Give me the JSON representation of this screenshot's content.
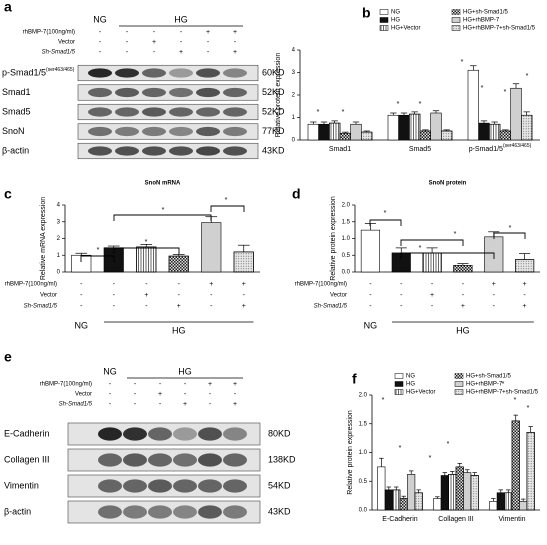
{
  "blots": [
    {
      "letter": "a",
      "group_labels": [
        "NG",
        "HG"
      ],
      "rows": [
        {
          "label": "rhBMP-7(100ng/ml)",
          "marks": [
            "-",
            "-",
            "-",
            "-",
            "+",
            "+"
          ]
        },
        {
          "label": "Vector",
          "marks": [
            "-",
            "-",
            "+",
            "-",
            "-",
            "-"
          ]
        },
        {
          "label": "Sh-Smad1/5",
          "marks": [
            "-",
            "-",
            "-",
            "+",
            "-",
            "+"
          ]
        }
      ],
      "bands": [
        {
          "label": "p-Smad1/5",
          "superscript": "(ser463/465)",
          "size": "60KD"
        },
        {
          "label": "Smad1",
          "size": "52KD"
        },
        {
          "label": "Smad5",
          "size": "52KD"
        },
        {
          "label": "SnoN",
          "size": "77KD"
        },
        {
          "label": "β-actin",
          "size": "43KD"
        }
      ]
    },
    {
      "letter": "e",
      "group_labels": [
        "NG",
        "HG"
      ],
      "rows": [
        {
          "label": "rhBMP-7(100ng/ml)",
          "marks": [
            "-",
            "-",
            "-",
            "-",
            "+",
            "+"
          ]
        },
        {
          "label": "Vector",
          "marks": [
            "-",
            "-",
            "+",
            "-",
            "-",
            "-"
          ]
        },
        {
          "label": "Sh-Smad1/5",
          "marks": [
            "-",
            "-",
            "-",
            "+",
            "-",
            "+"
          ]
        }
      ],
      "bands": [
        {
          "label": "E-Cadherin",
          "size": "80KD"
        },
        {
          "label": "Collagen III",
          "size": "138KD"
        },
        {
          "label": "Vimentin",
          "size": "54KD"
        },
        {
          "label": "β-actin",
          "size": "43KD"
        }
      ]
    }
  ],
  "chart_data": [
    {
      "type": "bar",
      "letter": "b",
      "y_label": "Relative protein expression",
      "categories": [
        "Smad1",
        "Smad5",
        "p-Smad1/5"
      ],
      "category_superscripts": [
        null,
        null,
        "(ser463/465)"
      ],
      "ylim": [
        0,
        4
      ],
      "yticks": [
        0,
        1,
        2,
        3,
        4
      ],
      "series": [
        {
          "name": "NG",
          "color": "#ffffff",
          "pattern": "none",
          "values": [
            0.7,
            1.1,
            3.1
          ],
          "errors": [
            0.1,
            0.1,
            0.2
          ]
        },
        {
          "name": "HG",
          "color": "#111111",
          "pattern": "none",
          "values": [
            0.7,
            1.1,
            0.75
          ],
          "errors": [
            0.1,
            0.1,
            0.1
          ]
        },
        {
          "name": "HG+Vector",
          "color": "#ffffff",
          "pattern": "stripes",
          "values": [
            0.75,
            1.15,
            0.7
          ],
          "errors": [
            0.1,
            0.1,
            0.1
          ]
        },
        {
          "name": "HG+sh-Smad1/5",
          "color": "#555555",
          "pattern": "check",
          "values": [
            0.3,
            0.4,
            0.4
          ],
          "errors": [
            0.05,
            0.05,
            0.05
          ]
        },
        {
          "name": "HG+rhBMP-7",
          "color": "#d0d0d0",
          "pattern": "none",
          "values": [
            0.7,
            1.2,
            2.3
          ],
          "errors": [
            0.1,
            0.1,
            0.2
          ]
        },
        {
          "name": "HG+rhBMP-7+sh-Smad1/5",
          "color": "#e6e6e6",
          "pattern": "dots",
          "values": [
            0.35,
            0.4,
            1.1
          ],
          "errors": [
            0.05,
            0.05,
            0.15
          ]
        }
      ],
      "significance": [
        "*",
        "*",
        "*",
        "*",
        "*",
        "*",
        "*",
        "*"
      ]
    },
    {
      "type": "bar",
      "letter": "c",
      "title": "SnoN mRNA",
      "y_label": "Relative mRNA expression",
      "categories": [
        null,
        null,
        null,
        null,
        null,
        null
      ],
      "values": [
        1.0,
        1.45,
        1.5,
        0.95,
        2.95,
        1.2
      ],
      "errors": [
        0.12,
        0.1,
        0.15,
        0.1,
        0.35,
        0.4
      ],
      "colors": [
        "#ffffff",
        "#111111",
        "#ffffff",
        "#555555",
        "#d0d0d0",
        "#e6e6e6"
      ],
      "patterns": [
        "none",
        "none",
        "stripes",
        "check",
        "none",
        "dots"
      ],
      "ylim": [
        0,
        4
      ],
      "yticks": [
        0,
        1,
        2,
        3,
        4
      ],
      "group_labels": [
        "NG",
        "HG"
      ],
      "treatments": [
        {
          "label": "rhBMP-7(100ng/ml)",
          "marks": [
            "-",
            "-",
            "-",
            "-",
            "+",
            "+"
          ]
        },
        {
          "label": "Vector",
          "marks": [
            "-",
            "-",
            "+",
            "-",
            "-",
            "-"
          ]
        },
        {
          "label": "Sh-Smad1/5",
          "marks": [
            "-",
            "-",
            "-",
            "+",
            "-",
            "+"
          ]
        }
      ],
      "significance": [
        "*",
        "*",
        "*",
        "*"
      ]
    },
    {
      "type": "bar",
      "letter": "d",
      "title": "SnoN protein",
      "y_label": "Relative protein expression",
      "categories": [
        null,
        null,
        null,
        null,
        null,
        null
      ],
      "values": [
        1.25,
        0.57,
        0.57,
        0.2,
        1.05,
        0.37
      ],
      "errors": [
        0.2,
        0.15,
        0.15,
        0.05,
        0.15,
        0.18
      ],
      "colors": [
        "#ffffff",
        "#111111",
        "#ffffff",
        "#555555",
        "#d0d0d0",
        "#e6e6e6"
      ],
      "patterns": [
        "none",
        "none",
        "stripes",
        "check",
        "none",
        "dots"
      ],
      "ylim": [
        0,
        2
      ],
      "yticks": [
        {
          "value": 0,
          "label": "0.0"
        },
        {
          "value": 0.5,
          "label": "0.5"
        },
        {
          "value": 1,
          "label": "1.0"
        },
        {
          "value": 1.5,
          "label": "1.5"
        },
        {
          "value": 2,
          "label": "2.0"
        }
      ],
      "group_labels": [
        "NG",
        "HG"
      ],
      "treatments": [
        {
          "label": "rhBMP-7(100ng/ml)",
          "marks": [
            "-",
            "-",
            "-",
            "-",
            "+",
            "+"
          ]
        },
        {
          "label": "Vector",
          "marks": [
            "-",
            "-",
            "+",
            "-",
            "-",
            "-"
          ]
        },
        {
          "label": "Sh-Smad1/5",
          "marks": [
            "-",
            "-",
            "-",
            "+",
            "-",
            "+"
          ]
        }
      ],
      "significance": [
        "*",
        "*",
        "*",
        "*"
      ]
    },
    {
      "type": "bar",
      "letter": "f",
      "y_label": "Relative protein expression",
      "categories": [
        "E-Cadherin",
        "Collagen III",
        "Vimentin"
      ],
      "category_superscripts": [
        null,
        null,
        null
      ],
      "ylim": [
        0,
        2
      ],
      "yticks": [
        {
          "value": 0,
          "label": "0.0"
        },
        {
          "value": 0.5,
          "label": "0.5"
        },
        {
          "value": 1,
          "label": "1.0"
        },
        {
          "value": 1.5,
          "label": "1.5"
        },
        {
          "value": 2,
          "label": "2.0"
        }
      ],
      "series": [
        {
          "name": "NG",
          "color": "#ffffff",
          "pattern": "none",
          "values": [
            0.75,
            0.2,
            0.15
          ],
          "errors": [
            0.15,
            0.03,
            0.05
          ]
        },
        {
          "name": "HG",
          "color": "#111111",
          "pattern": "none",
          "values": [
            0.35,
            0.6,
            0.3
          ],
          "errors": [
            0.05,
            0.05,
            0.05
          ]
        },
        {
          "name": "HG+Vector",
          "color": "#ffffff",
          "pattern": "stripes",
          "values": [
            0.35,
            0.62,
            0.3
          ],
          "errors": [
            0.05,
            0.05,
            0.05
          ]
        },
        {
          "name": "HG+sh-Smad1/5",
          "color": "#555555",
          "pattern": "check",
          "values": [
            0.2,
            0.75,
            1.55
          ],
          "errors": [
            0.04,
            0.06,
            0.1
          ]
        },
        {
          "name": "HG+rhBMP-7",
          "color": "#d0d0d0",
          "pattern": "none",
          "values": [
            0.62,
            0.65,
            0.15
          ],
          "errors": [
            0.06,
            0.05,
            0.04
          ]
        },
        {
          "name": "HG+rhBMP-7+sh-Smad1/5",
          "color": "#e6e6e6",
          "pattern": "dots",
          "values": [
            0.3,
            0.6,
            1.35
          ],
          "errors": [
            0.05,
            0.05,
            0.1
          ]
        }
      ],
      "significance": [
        "*",
        "*",
        "*",
        "*",
        "*",
        "*",
        "*"
      ]
    }
  ]
}
